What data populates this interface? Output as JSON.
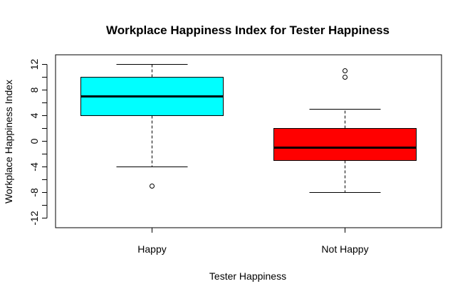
{
  "chart_data": {
    "type": "boxplot",
    "title": "Workplace Happiness Index for Tester Happiness",
    "xlabel": "Tester Happiness",
    "ylabel": "Workplace Happiness Index",
    "categories": [
      "Happy",
      "Not Happy"
    ],
    "ylim": [
      -13.5,
      13.5
    ],
    "y_ticks": [
      -12,
      -8,
      -4,
      0,
      4,
      8,
      12
    ],
    "y_ticks_unlabeled": [
      -10,
      -6,
      -2,
      2,
      6,
      10
    ],
    "grid": false,
    "boxes": [
      {
        "name": "Happy",
        "whisker_low": -4,
        "q1": 4,
        "median": 7,
        "q3": 10,
        "whisker_high": 12,
        "outliers": [
          -7
        ],
        "color": "#00ffff"
      },
      {
        "name": "Not Happy",
        "whisker_low": -8,
        "q1": -3,
        "median": -1,
        "q3": 2,
        "whisker_high": 5,
        "outliers": [
          10,
          11
        ],
        "color": "#ff0000"
      }
    ]
  }
}
